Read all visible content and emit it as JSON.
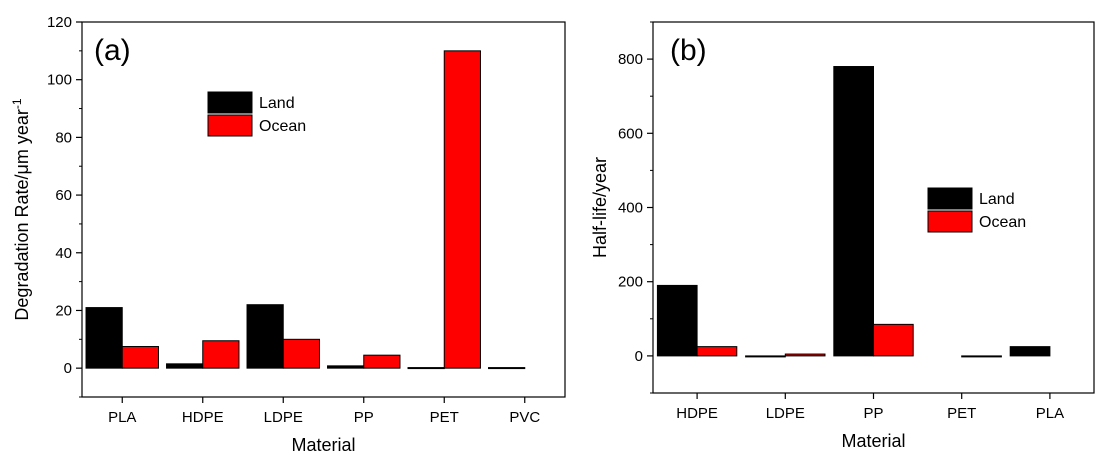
{
  "chart_data": [
    {
      "type": "bar",
      "panel_label": "(a)",
      "categories": [
        "PLA",
        "HDPE",
        "LDPE",
        "PP",
        "PET",
        "PVC"
      ],
      "series": [
        {
          "name": "Land",
          "color": "#000000",
          "values": [
            21,
            1.5,
            22,
            0.8,
            0.2,
            0.2
          ]
        },
        {
          "name": "Ocean",
          "color": "#ff0000",
          "values": [
            7.5,
            9.5,
            10,
            4.5,
            110,
            null
          ]
        }
      ],
      "xlabel": "Material",
      "ylabel": "Degradation Rate/μm year",
      "ylabel_superscript": "-1",
      "ylim": [
        -10,
        120
      ],
      "yticks": [
        0,
        20,
        40,
        60,
        80,
        100,
        120
      ],
      "legend": "upper-middle"
    },
    {
      "type": "bar",
      "panel_label": "(b)",
      "categories": [
        "HDPE",
        "LDPE",
        "PP",
        "PET",
        "PLA"
      ],
      "series": [
        {
          "name": "Land",
          "color": "#000000",
          "values": [
            190,
            0,
            780,
            null,
            25
          ]
        },
        {
          "name": "Ocean",
          "color": "#ff0000",
          "values": [
            25,
            5,
            85,
            0,
            null
          ]
        }
      ],
      "xlabel": "Material",
      "ylabel": "Half-life/year",
      "ylim": [
        -100,
        900
      ],
      "yticks": [
        0,
        200,
        400,
        600,
        800
      ],
      "legend": "middle-right"
    }
  ]
}
